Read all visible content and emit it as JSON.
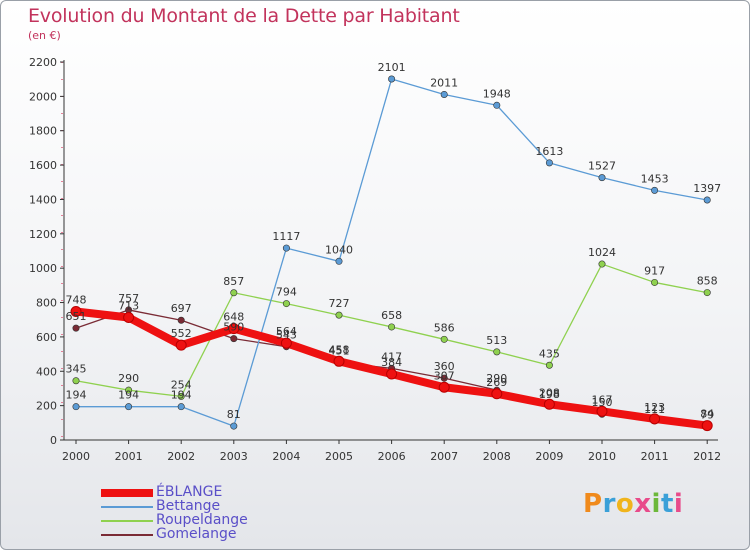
{
  "title": "Evolution du Montant de la Dette par Habitant",
  "subtitle": "(en €)",
  "logo": {
    "text": "Proxiti",
    "colors": [
      "#f08a1c",
      "#3aa0d8",
      "#f0b41c",
      "#e84b8a",
      "#6cb83a",
      "#3aa0d8",
      "#e84b8a"
    ]
  },
  "chart_data": {
    "type": "line",
    "title": "Evolution du Montant de la Dette par Habitant",
    "subtitle": "(en €)",
    "xlabel": "",
    "ylabel": "",
    "x": [
      "2000",
      "2001",
      "2002",
      "2003",
      "2004",
      "2005",
      "2006",
      "2007",
      "2008",
      "2009",
      "2010",
      "2011",
      "2012"
    ],
    "ylim": [
      0,
      2200
    ],
    "yticks": [
      0,
      200,
      400,
      600,
      800,
      1000,
      1200,
      1400,
      1600,
      1800,
      2000,
      2200
    ],
    "grid": false,
    "legend_position": "bottom-left",
    "series": [
      {
        "name": "Gomelange",
        "color": "#7a2b35",
        "values": [
          651,
          757,
          697,
          590,
          543,
          451,
          417,
          360,
          290,
          198,
          150,
          111,
          79
        ]
      },
      {
        "name": "Roupeldange",
        "color": "#8fd14f",
        "values": [
          345,
          290,
          254,
          857,
          794,
          727,
          658,
          586,
          513,
          435,
          1024,
          917,
          858
        ]
      },
      {
        "name": "Bettange",
        "color": "#5b9bd5",
        "values": [
          194,
          194,
          194,
          81,
          1117,
          1040,
          2101,
          2011,
          1948,
          1613,
          1527,
          1453,
          1397
        ]
      },
      {
        "name": "ÉBLANGE",
        "color": "#ee1111",
        "values": [
          748,
          713,
          552,
          648,
          564,
          458,
          384,
          307,
          269,
          208,
          167,
          123,
          84
        ]
      }
    ],
    "legend_order": [
      "ÉBLANGE",
      "Bettange",
      "Roupeldange",
      "Gomelange"
    ]
  }
}
